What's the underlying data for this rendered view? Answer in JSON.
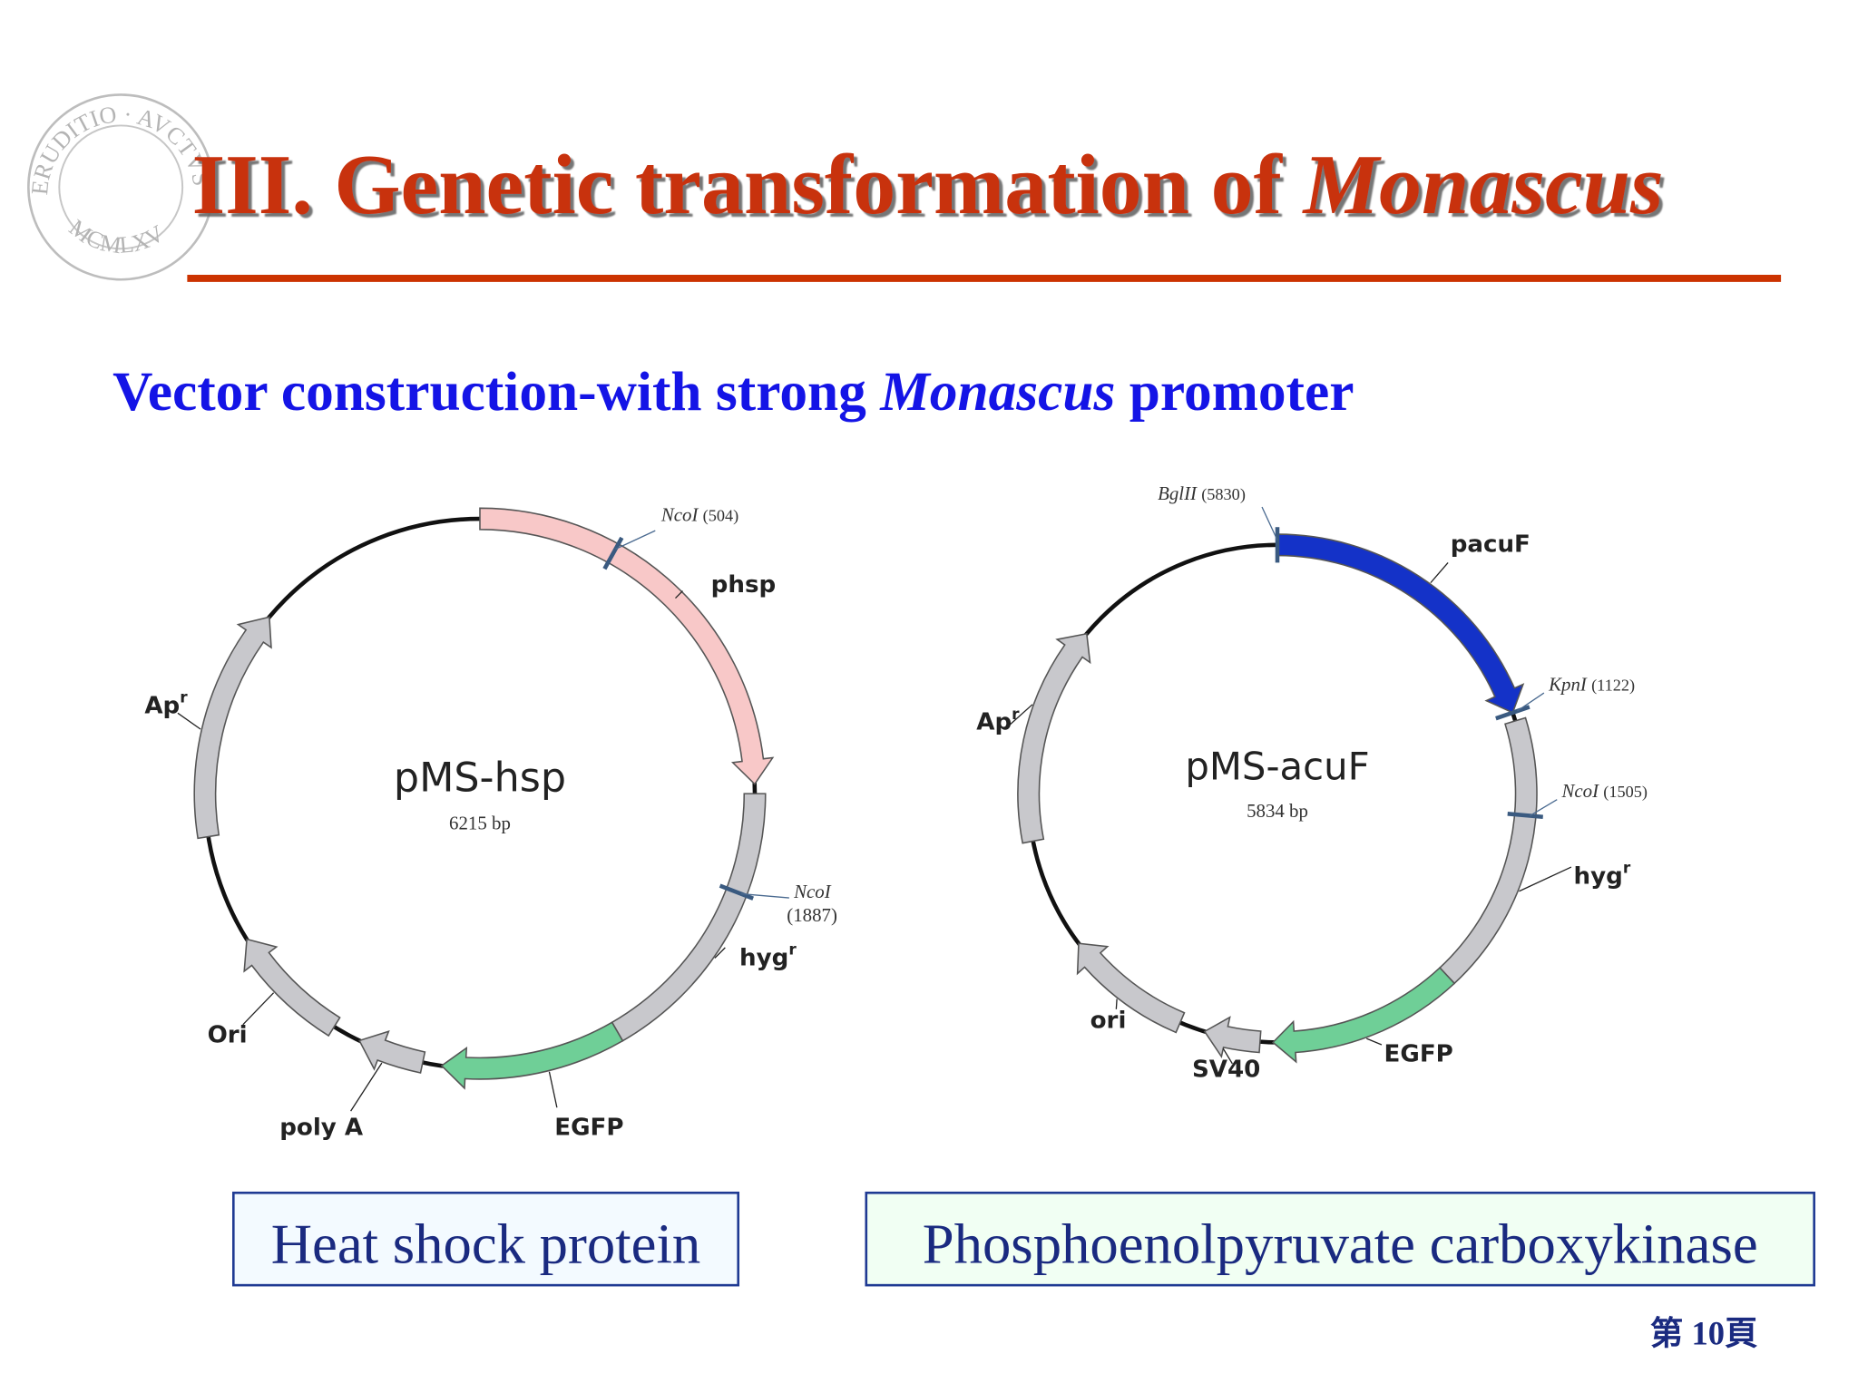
{
  "header": {
    "title": "III. Genetic transformation of",
    "title_italic": "Monascus",
    "logo_top": "ERUDITIO · AVCTVS · IN",
    "logo_bottom": "MCMLXV"
  },
  "subtitle": {
    "text": "Vector construction-with strong",
    "italic": "Monascus",
    "end": "promoter"
  },
  "plasmids": [
    {
      "name": "pMS-hsp",
      "size": "6215 bp",
      "caption": "Heat shock protein",
      "features": [
        {
          "label": "phsp"
        },
        {
          "label": "hyg",
          "sup": "r"
        },
        {
          "label": "EGFP"
        },
        {
          "label": "poly A"
        },
        {
          "label": "Ori"
        },
        {
          "label": "Ap",
          "sup": "r"
        }
      ],
      "sites": [
        {
          "enzyme": "NcoI",
          "position": "(504)"
        },
        {
          "enzyme": "NcoI",
          "position": "(1887)"
        }
      ]
    },
    {
      "name": "pMS-acuF",
      "size": "5834 bp",
      "caption": "Phosphoenolpyruvate carboxykinase",
      "features": [
        {
          "label": "pacuF"
        },
        {
          "label": "hyg",
          "sup": "r"
        },
        {
          "label": "EGFP"
        },
        {
          "label": "SV40"
        },
        {
          "label": "ori"
        },
        {
          "label": "Ap",
          "sup": "r"
        }
      ],
      "sites": [
        {
          "enzyme": "BglII",
          "position": "(5830)"
        },
        {
          "enzyme": "KpnI",
          "position": "(1122)"
        },
        {
          "enzyme": "NcoI",
          "position": "(1505)"
        }
      ]
    }
  ],
  "footer": {
    "page": "第 10頁"
  }
}
